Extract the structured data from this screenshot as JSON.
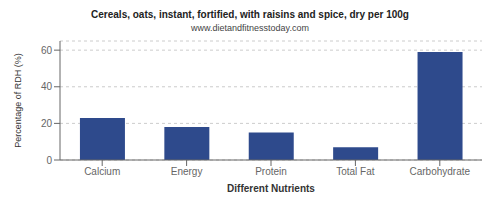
{
  "chart_data": {
    "type": "bar",
    "title": "Cereals, oats, instant, fortified, with raisins and spice, dry per 100g",
    "subtitle": "www.dietandfitnesstoday.com",
    "xlabel": "Different Nutrients",
    "ylabel": "Percentage of RDH (%)",
    "categories": [
      "Calcium",
      "Energy",
      "Protein",
      "Total Fat",
      "Carbohydrate"
    ],
    "values": [
      23,
      18,
      15,
      7,
      59
    ],
    "color": "#2e4a8c",
    "ylim": [
      0,
      65
    ],
    "yticks": [
      0,
      20,
      40,
      60
    ],
    "grid": true
  }
}
